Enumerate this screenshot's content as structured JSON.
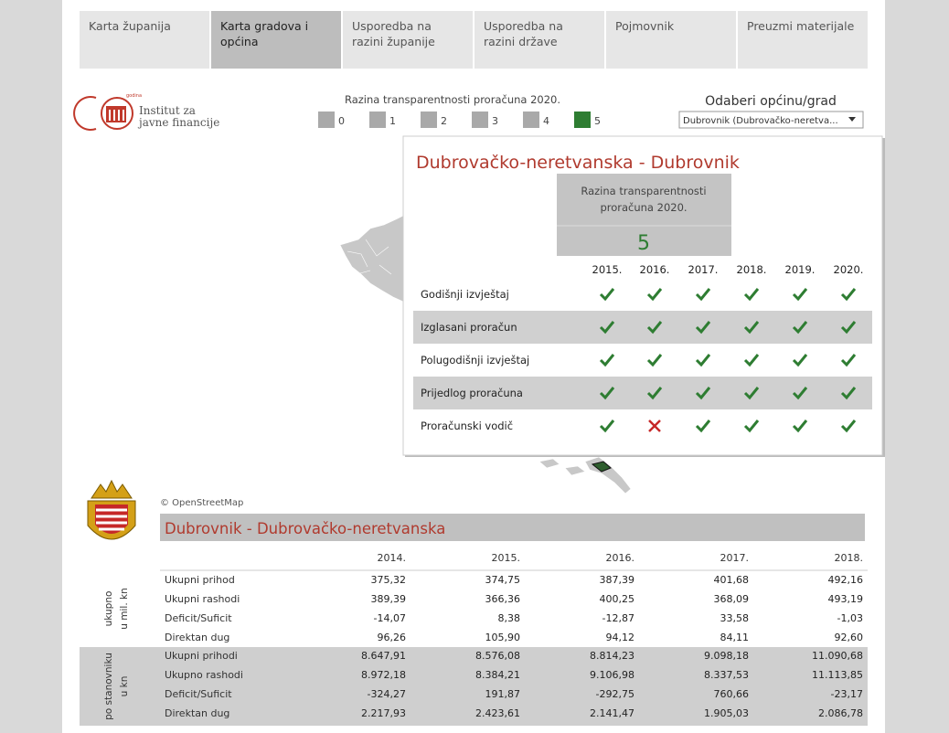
{
  "nav": {
    "tabs": [
      {
        "label": "Karta županija"
      },
      {
        "label": "Karta gradova i općina",
        "active": true
      },
      {
        "label": "Usporedba na razini županije"
      },
      {
        "label": "Usporedba na razini države"
      },
      {
        "label": "Pojmovnik"
      },
      {
        "label": "Preuzmi materijale"
      }
    ]
  },
  "logo": {
    "badge": "godina",
    "name": [
      "Institut za",
      "javne financije"
    ]
  },
  "legend": {
    "title": "Razina transparentnosti proračuna 2020.",
    "levels": [
      {
        "label": 0,
        "color": "#a9a9a9"
      },
      {
        "label": 1,
        "color": "#a9a9a9"
      },
      {
        "label": 2,
        "color": "#a9a9a9"
      },
      {
        "label": 3,
        "color": "#a9a9a9"
      },
      {
        "label": 4,
        "color": "#a9a9a9"
      },
      {
        "label": 5,
        "color": "#2e7d32"
      }
    ]
  },
  "selector": {
    "label": "Odaberi općinu/grad",
    "value": "Dubrovnik (Dubrovačko-neretva..."
  },
  "popup": {
    "title": "Dubrovačko-neretvanska - Dubrovnik",
    "score_label": [
      "Razina transparentnosti",
      "proračuna  2020."
    ],
    "score": 5,
    "years": [
      "2015.",
      "2016.",
      "2017.",
      "2018.",
      "2019.",
      "2020."
    ],
    "rows": [
      {
        "label": "Godišnji izvještaj",
        "status": [
          true,
          true,
          true,
          true,
          true,
          true
        ]
      },
      {
        "label": "Izglasani proračun",
        "status": [
          true,
          true,
          true,
          true,
          true,
          true
        ]
      },
      {
        "label": "Polugodišnji izvještaj",
        "status": [
          true,
          true,
          true,
          true,
          true,
          true
        ]
      },
      {
        "label": "Prijedlog proračuna",
        "status": [
          true,
          true,
          true,
          true,
          true,
          true
        ]
      },
      {
        "label": "Proračunski vodič",
        "status": [
          true,
          false,
          true,
          true,
          true,
          true
        ]
      }
    ]
  },
  "attribution": "© OpenStreetMap",
  "table": {
    "title": "Dubrovnik - Dubrovačko-neretvanska",
    "years": [
      "2014.",
      "2015.",
      "2016.",
      "2017.",
      "2018."
    ],
    "groups": [
      {
        "label": [
          "ukupno",
          "u mil. kn"
        ],
        "rows": [
          {
            "label": "Ukupni prihod",
            "values": [
              "375,32",
              "374,75",
              "387,39",
              "401,68",
              "492,16"
            ]
          },
          {
            "label": "Ukupni rashodi",
            "values": [
              "389,39",
              "366,36",
              "400,25",
              "368,09",
              "493,19"
            ]
          },
          {
            "label": "Deficit/Suficit",
            "values": [
              "-14,07",
              "8,38",
              "-12,87",
              "33,58",
              "-1,03"
            ]
          },
          {
            "label": "Direktan dug",
            "values": [
              "96,26",
              "105,90",
              "94,12",
              "84,11",
              "92,60"
            ]
          }
        ]
      },
      {
        "label": [
          "po stanovniku",
          "u kn"
        ],
        "rows": [
          {
            "label": "Ukupni prihodi",
            "values": [
              "8.647,91",
              "8.576,08",
              "8.814,23",
              "9.098,18",
              "11.090,68"
            ]
          },
          {
            "label": "Ukupno rashodi",
            "values": [
              "8.972,18",
              "8.384,21",
              "9.106,98",
              "8.337,53",
              "11.113,85"
            ]
          },
          {
            "label": "Deficit/Suficit",
            "values": [
              "-324,27",
              "191,87",
              "-292,75",
              "760,66",
              "-23,17"
            ]
          },
          {
            "label": "Direktan dug",
            "values": [
              "2.217,93",
              "2.423,61",
              "2.141,47",
              "1.905,03",
              "2.086,78"
            ]
          }
        ]
      }
    ]
  }
}
